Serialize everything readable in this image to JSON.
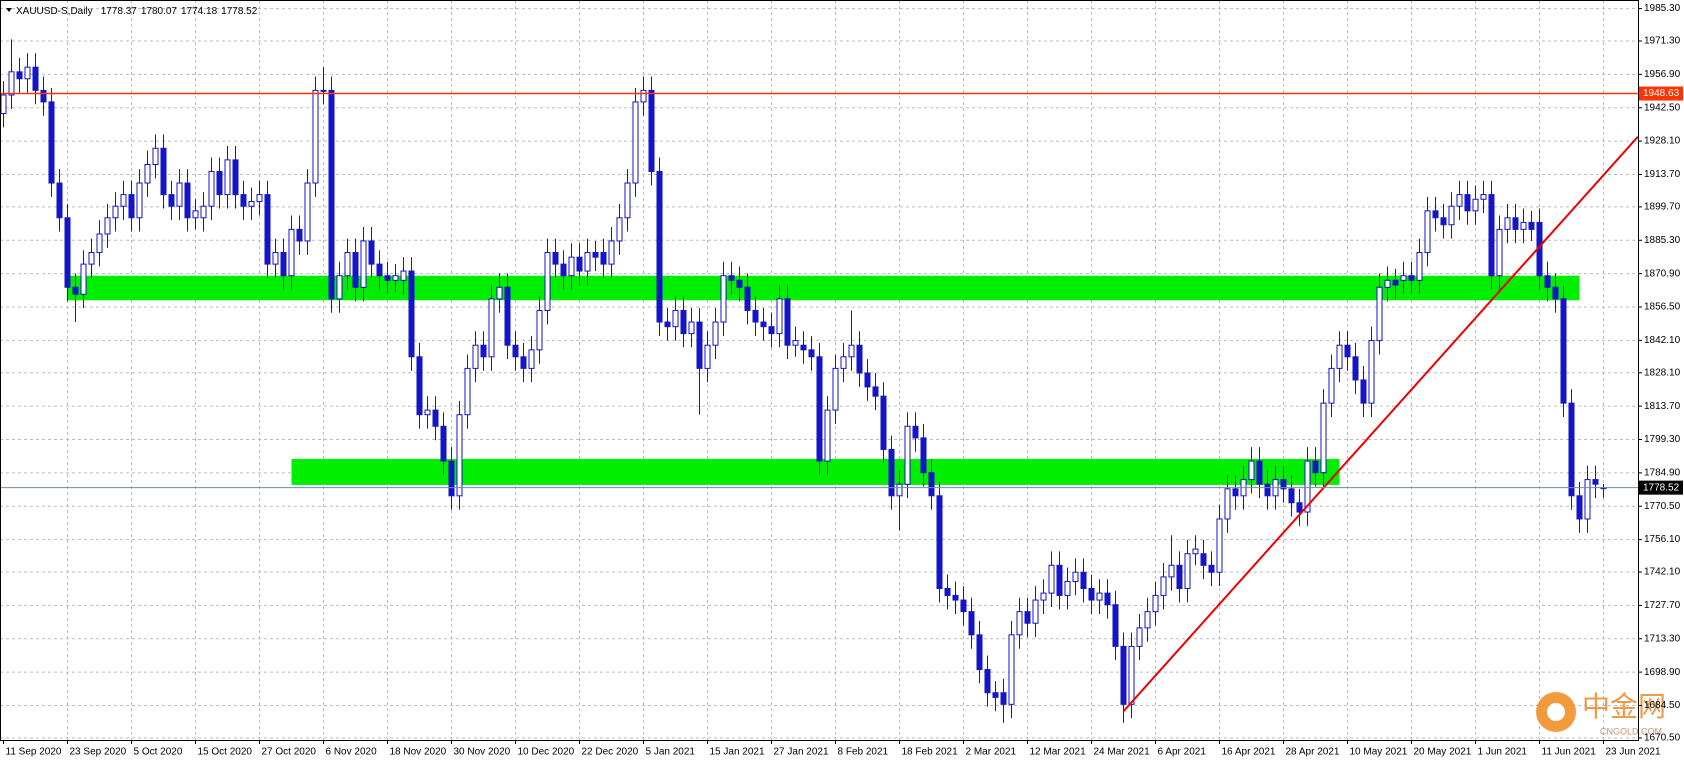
{
  "chart_data": {
    "type": "candlestick",
    "title": "XAUUSD-S,Daily",
    "categories": [
      "11 Sep 2020",
      null,
      null,
      null,
      null,
      null,
      null,
      null,
      "23 Sep 2020",
      null,
      null,
      null,
      null,
      null,
      null,
      null,
      "5 Oct 2020",
      null,
      null,
      null,
      null,
      null,
      null,
      null,
      "15 Oct 2020",
      null,
      null,
      null,
      null,
      null,
      null,
      null,
      "27 Oct 2020",
      null,
      null,
      null,
      null,
      null,
      null,
      null,
      "6 Nov 2020",
      null,
      null,
      null,
      null,
      null,
      null,
      null,
      "18 Nov 2020",
      null,
      null,
      null,
      null,
      null,
      null,
      null,
      "30 Nov 2020",
      null,
      null,
      null,
      null,
      null,
      null,
      null,
      "10 Dec 2020",
      null,
      null,
      null,
      null,
      null,
      null,
      null,
      "22 Dec 2020",
      null,
      null,
      null,
      null,
      null,
      null,
      null,
      "5 Jan 2021",
      null,
      null,
      null,
      null,
      null,
      null,
      null,
      "15 Jan 2021",
      null,
      null,
      null,
      null,
      null,
      null,
      null,
      "27 Jan 2021",
      null,
      null,
      null,
      null,
      null,
      null,
      null,
      "8 Feb 2021",
      null,
      null,
      null,
      null,
      null,
      null,
      null,
      "18 Feb 2021",
      null,
      null,
      null,
      null,
      null,
      null,
      null,
      "2 Mar 2021",
      null,
      null,
      null,
      null,
      null,
      null,
      null,
      "12 Mar 2021",
      null,
      null,
      null,
      null,
      null,
      null,
      null,
      "24 Mar 2021",
      null,
      null,
      null,
      null,
      null,
      null,
      null,
      "6 Apr 2021",
      null,
      null,
      null,
      null,
      null,
      null,
      null,
      "16 Apr 2021",
      null,
      null,
      null,
      null,
      null,
      null,
      null,
      "28 Apr 2021",
      null,
      null,
      null,
      null,
      null,
      null,
      null,
      "10 May 2021",
      null,
      null,
      null,
      null,
      null,
      null,
      null,
      "20 May 2021",
      null,
      null,
      null,
      null,
      null,
      null,
      null,
      "1 Jun 2021",
      null,
      null,
      null,
      null,
      null,
      null,
      null,
      "11 Jun 2021",
      null,
      null,
      null,
      null,
      null,
      null,
      null,
      "23 Jun 2021"
    ],
    "open": [
      1940,
      1948,
      1958,
      1955,
      1960,
      1950,
      1945,
      1910,
      1895,
      1865,
      1862,
      1875,
      1880,
      1888,
      1895,
      1900,
      1905,
      1895,
      1910,
      1918,
      1925,
      1905,
      1900,
      1910,
      1895,
      1895,
      1900,
      1915,
      1905,
      1920,
      1905,
      1900,
      1902,
      1905,
      1875,
      1880,
      1870,
      1890,
      1885,
      1910,
      1950,
      1950,
      1860,
      1870,
      1880,
      1865,
      1885,
      1875,
      1870,
      1868,
      1868,
      1872,
      1835,
      1810,
      1812,
      1805,
      1790,
      1775,
      1810,
      1830,
      1840,
      1835,
      1860,
      1865,
      1840,
      1835,
      1830,
      1838,
      1855,
      1880,
      1875,
      1870,
      1878,
      1872,
      1880,
      1880,
      1875,
      1885,
      1895,
      1910,
      1945,
      1950,
      1915,
      1850,
      1848,
      1855,
      1845,
      1850,
      1830,
      1840,
      1850,
      1870,
      1868,
      1865,
      1855,
      1850,
      1848,
      1845,
      1860,
      1840,
      1840,
      1838,
      1835,
      1790,
      1812,
      1830,
      1835,
      1840,
      1828,
      1822,
      1818,
      1795,
      1775,
      1780,
      1805,
      1800,
      1785,
      1775,
      1735,
      1732,
      1730,
      1725,
      1715,
      1700,
      1690,
      1690,
      1685,
      1715,
      1725,
      1720,
      1730,
      1733,
      1745,
      1732,
      1738,
      1742,
      1735,
      1730,
      1733,
      1728,
      1710,
      1685,
      1710,
      1718,
      1725,
      1732,
      1740,
      1745,
      1735,
      1750,
      1750,
      1745,
      1742,
      1765,
      1778,
      1775,
      1782,
      1790,
      1780,
      1775,
      1782,
      1778,
      1772,
      1768,
      1790,
      1785,
      1815,
      1830,
      1840,
      1835,
      1825,
      1815,
      1842,
      1865,
      1868,
      1868,
      1870,
      1868,
      1880,
      1898,
      1895,
      1892,
      1900,
      1905,
      1898,
      1903,
      1905,
      1870,
      1890,
      1895,
      1890,
      1893,
      1893,
      1870,
      1865,
      1860,
      1815,
      1775,
      1765,
      1782,
      1778.37
    ],
    "high": [
      1954,
      1972,
      1964,
      1966,
      1966,
      1956,
      1951,
      1916,
      1901,
      1871,
      1881,
      1886,
      1894,
      1901,
      1906,
      1911,
      1911,
      1916,
      1924,
      1931,
      1931,
      1911,
      1916,
      1916,
      1903,
      1906,
      1921,
      1921,
      1926,
      1926,
      1911,
      1908,
      1911,
      1911,
      1886,
      1886,
      1896,
      1896,
      1916,
      1956,
      1960,
      1956,
      1876,
      1886,
      1886,
      1891,
      1891,
      1881,
      1876,
      1875,
      1878,
      1878,
      1841,
      1818,
      1818,
      1811,
      1796,
      1816,
      1836,
      1846,
      1846,
      1866,
      1871,
      1871,
      1846,
      1841,
      1844,
      1861,
      1886,
      1886,
      1881,
      1884,
      1884,
      1886,
      1885,
      1886,
      1891,
      1901,
      1916,
      1951,
      1956,
      1956,
      1921,
      1856,
      1861,
      1861,
      1856,
      1856,
      1846,
      1856,
      1876,
      1876,
      1874,
      1871,
      1861,
      1856,
      1854,
      1866,
      1866,
      1848,
      1846,
      1844,
      1841,
      1818,
      1836,
      1841,
      1855,
      1846,
      1834,
      1828,
      1824,
      1801,
      1786,
      1811,
      1811,
      1806,
      1791,
      1781,
      1741,
      1738,
      1736,
      1731,
      1721,
      1706,
      1695,
      1696,
      1721,
      1731,
      1731,
      1736,
      1739,
      1751,
      1751,
      1744,
      1748,
      1748,
      1741,
      1739,
      1739,
      1734,
      1716,
      1716,
      1724,
      1731,
      1738,
      1746,
      1758,
      1751,
      1756,
      1758,
      1756,
      1751,
      1771,
      1784,
      1784,
      1788,
      1796,
      1796,
      1786,
      1788,
      1788,
      1784,
      1778,
      1796,
      1796,
      1821,
      1836,
      1846,
      1846,
      1841,
      1831,
      1848,
      1871,
      1874,
      1873,
      1876,
      1876,
      1886,
      1904,
      1904,
      1901,
      1906,
      1911,
      1911,
      1909,
      1911,
      1911,
      1896,
      1901,
      1901,
      1899,
      1898,
      1899,
      1876,
      1871,
      1866,
      1821,
      1781,
      1788,
      1788,
      1780.07
    ],
    "low": [
      1934,
      1942,
      1949,
      1949,
      1944,
      1939,
      1904,
      1889,
      1859,
      1850,
      1856,
      1869,
      1874,
      1882,
      1889,
      1894,
      1889,
      1889,
      1904,
      1912,
      1899,
      1894,
      1894,
      1889,
      1890,
      1889,
      1894,
      1899,
      1899,
      1899,
      1894,
      1894,
      1896,
      1869,
      1869,
      1864,
      1864,
      1879,
      1879,
      1904,
      1944,
      1854,
      1854,
      1864,
      1859,
      1859,
      1869,
      1864,
      1862,
      1863,
      1862,
      1829,
      1804,
      1804,
      1799,
      1784,
      1769,
      1769,
      1804,
      1824,
      1829,
      1829,
      1854,
      1834,
      1829,
      1824,
      1824,
      1832,
      1849,
      1869,
      1864,
      1864,
      1866,
      1866,
      1872,
      1869,
      1869,
      1879,
      1889,
      1904,
      1939,
      1909,
      1844,
      1842,
      1842,
      1839,
      1839,
      1810,
      1824,
      1834,
      1844,
      1862,
      1859,
      1849,
      1844,
      1842,
      1839,
      1839,
      1834,
      1835,
      1832,
      1829,
      1784,
      1784,
      1806,
      1824,
      1829,
      1822,
      1816,
      1812,
      1789,
      1769,
      1760,
      1774,
      1794,
      1779,
      1769,
      1729,
      1726,
      1724,
      1719,
      1709,
      1694,
      1684,
      1682,
      1677,
      1679,
      1709,
      1714,
      1714,
      1724,
      1727,
      1726,
      1726,
      1732,
      1729,
      1724,
      1724,
      1722,
      1704,
      1677,
      1679,
      1704,
      1712,
      1719,
      1726,
      1734,
      1729,
      1729,
      1745,
      1739,
      1736,
      1736,
      1759,
      1769,
      1769,
      1776,
      1774,
      1769,
      1769,
      1772,
      1766,
      1762,
      1762,
      1779,
      1779,
      1809,
      1824,
      1829,
      1819,
      1809,
      1809,
      1836,
      1859,
      1860,
      1862,
      1862,
      1862,
      1874,
      1889,
      1886,
      1886,
      1894,
      1892,
      1892,
      1897,
      1864,
      1864,
      1884,
      1884,
      1884,
      1885,
      1864,
      1859,
      1854,
      1809,
      1769,
      1759,
      1759,
      1774,
      1774.18
    ],
    "close": [
      1948,
      1958,
      1955,
      1960,
      1950,
      1945,
      1910,
      1895,
      1865,
      1862,
      1875,
      1880,
      1888,
      1895,
      1900,
      1905,
      1895,
      1910,
      1918,
      1925,
      1905,
      1900,
      1910,
      1895,
      1898,
      1900,
      1915,
      1905,
      1920,
      1905,
      1900,
      1902,
      1905,
      1875,
      1880,
      1870,
      1890,
      1885,
      1910,
      1950,
      1950,
      1860,
      1870,
      1880,
      1865,
      1885,
      1875,
      1870,
      1868,
      1870,
      1872,
      1835,
      1810,
      1812,
      1805,
      1790,
      1775,
      1810,
      1830,
      1840,
      1835,
      1860,
      1865,
      1840,
      1835,
      1830,
      1838,
      1855,
      1880,
      1875,
      1870,
      1878,
      1872,
      1880,
      1878,
      1875,
      1885,
      1895,
      1910,
      1945,
      1950,
      1915,
      1850,
      1848,
      1855,
      1845,
      1850,
      1830,
      1840,
      1850,
      1870,
      1868,
      1865,
      1855,
      1850,
      1848,
      1845,
      1860,
      1840,
      1842,
      1838,
      1835,
      1790,
      1812,
      1830,
      1835,
      1840,
      1828,
      1822,
      1818,
      1795,
      1775,
      1780,
      1805,
      1800,
      1785,
      1775,
      1735,
      1732,
      1730,
      1725,
      1715,
      1700,
      1690,
      1688,
      1685,
      1715,
      1725,
      1720,
      1730,
      1733,
      1745,
      1732,
      1738,
      1742,
      1735,
      1730,
      1733,
      1728,
      1710,
      1685,
      1710,
      1718,
      1725,
      1732,
      1740,
      1745,
      1735,
      1750,
      1752,
      1745,
      1742,
      1765,
      1778,
      1775,
      1782,
      1790,
      1780,
      1775,
      1782,
      1778,
      1772,
      1768,
      1790,
      1785,
      1815,
      1830,
      1840,
      1835,
      1825,
      1815,
      1842,
      1865,
      1868,
      1866,
      1870,
      1868,
      1880,
      1898,
      1895,
      1892,
      1900,
      1905,
      1898,
      1903,
      1905,
      1870,
      1890,
      1895,
      1890,
      1893,
      1890,
      1870,
      1865,
      1860,
      1815,
      1775,
      1765,
      1782,
      1780,
      1778.52
    ],
    "color": "#1414c8",
    "ylim": [
      1669.6,
      1989.0
    ],
    "yticks": [
      {
        "value": 1985.3,
        "label": "1985.30"
      },
      {
        "value": 1971.3,
        "label": "1971.30"
      },
      {
        "value": 1956.9,
        "label": "1956.90"
      },
      {
        "value": 1942.5,
        "label": "1942.50"
      },
      {
        "value": 1928.1,
        "label": "1928.10"
      },
      {
        "value": 1913.7,
        "label": "1913.70"
      },
      {
        "value": 1899.7,
        "label": "1899.70"
      },
      {
        "value": 1885.3,
        "label": "1885.30"
      },
      {
        "value": 1870.9,
        "label": "1870.90"
      },
      {
        "value": 1856.5,
        "label": "1856.50"
      },
      {
        "value": 1842.1,
        "label": "1842.10"
      },
      {
        "value": 1828.1,
        "label": "1828.10"
      },
      {
        "value": 1813.7,
        "label": "1813.70"
      },
      {
        "value": 1799.3,
        "label": "1799.30"
      },
      {
        "value": 1784.9,
        "label": "1784.90"
      },
      {
        "value": 1770.5,
        "label": "1770.50"
      },
      {
        "value": 1756.1,
        "label": "1756.10"
      },
      {
        "value": 1742.1,
        "label": "1742.10"
      },
      {
        "value": 1727.7,
        "label": "1727.70"
      },
      {
        "value": 1713.3,
        "label": "1713.30"
      },
      {
        "value": 1698.9,
        "label": "1698.90"
      },
      {
        "value": 1684.5,
        "label": "1684.50"
      },
      {
        "value": 1670.5,
        "label": "1670.50"
      }
    ],
    "grid": true,
    "hlines": [
      {
        "value": 1948.63,
        "color": "#ff3300"
      }
    ],
    "current_price_color": "#7088b0",
    "zones": [
      {
        "from": 1859.4,
        "to": 1870.0,
        "x": [
          8,
          197
        ],
        "color": "#00ee00"
      },
      {
        "from": 1779.7,
        "to": 1790.9,
        "x": [
          36,
          167
        ],
        "color": "#00ee00"
      }
    ],
    "trendlines": [
      {
        "x": [
          140,
          204.3
        ],
        "y": [
          1682,
          1930
        ],
        "color": "#ee0000"
      }
    ],
    "watermark": {
      "text": "中金网",
      "sub": "CNGOLD.COM"
    }
  }
}
